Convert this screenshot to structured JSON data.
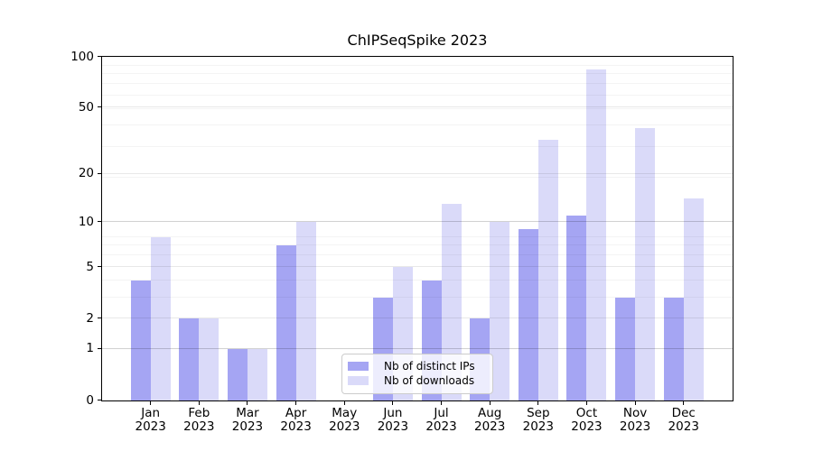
{
  "chart_data": {
    "type": "bar",
    "title": "ChIPSeqSpike 2023",
    "categories": [
      "Jan",
      "Feb",
      "Mar",
      "Apr",
      "May",
      "Jun",
      "Jul",
      "Aug",
      "Sep",
      "Oct",
      "Nov",
      "Dec"
    ],
    "x_year": "2023",
    "series": [
      {
        "name": "Nb of distinct IPs",
        "color": "#a5a5f3",
        "values": [
          4,
          2,
          1,
          7,
          0,
          3,
          4,
          2,
          9,
          11,
          3,
          3
        ]
      },
      {
        "name": "Nb of downloads",
        "color": "#dadaf9",
        "values": [
          8,
          2,
          1,
          10,
          0,
          5,
          13,
          10,
          32,
          84,
          38,
          14
        ]
      }
    ],
    "yscale": "log1p",
    "yticks": [
      0,
      1,
      2,
      5,
      10,
      20,
      50,
      100
    ],
    "ylim": [
      0,
      100
    ],
    "grid": true,
    "legend_position": "lower center"
  }
}
